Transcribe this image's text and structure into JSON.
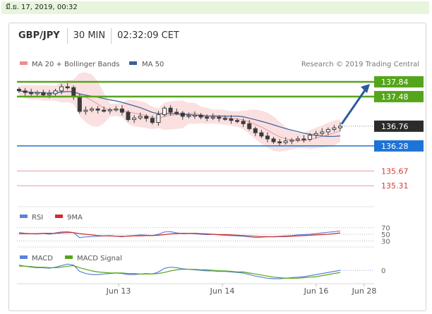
{
  "date_label": "มี.ย. 17, 2019, 00:32",
  "header": {
    "pair": "GBP/JPY",
    "timeframe": "30 MIN",
    "time": "02:32:09 CET"
  },
  "legend": {
    "ma20": "MA 20 + Bollinger Bands",
    "ma50": "MA 50",
    "credit": "Research © 2019 Trading Central"
  },
  "colors": {
    "candle": "#3b3b3b",
    "bollinger_fill": "#f5c6c6",
    "bollinger_line": "#e59a9a",
    "ma50": "#3c5f99",
    "green_level": "#55a51c",
    "current_price": "#2b2b2b",
    "pivot": "#1e73d6",
    "support": "#e89a9a",
    "arrow": "#2c5aa0",
    "rsi": "#5b82d8",
    "rsi_9ma": "#d82a2a",
    "macd": "#5b82d8",
    "macd_signal": "#55a51c"
  },
  "chart_data": {
    "type": "candlestick",
    "title": "GBP/JPY",
    "x_ticks": [
      "Jun 13",
      "Jun 14",
      "Jun 16",
      "Jun 28"
    ],
    "price_levels": [
      {
        "value": 137.84,
        "label": "137.84",
        "style": "target"
      },
      {
        "value": 137.48,
        "label": "137.48",
        "style": "target"
      },
      {
        "value": 136.76,
        "label": "136.76",
        "style": "current"
      },
      {
        "value": 136.28,
        "label": "136.28",
        "style": "pivot"
      },
      {
        "value": 135.67,
        "label": "135.67",
        "style": "support"
      },
      {
        "value": 135.31,
        "label": "135.31",
        "style": "support"
      }
    ],
    "projection": {
      "from": 136.76,
      "to": 137.84
    },
    "ylim": [
      134.85,
      138.08
    ],
    "close_series": [
      137.62,
      137.58,
      137.55,
      137.58,
      137.52,
      137.55,
      137.62,
      137.72,
      137.7,
      137.48,
      137.12,
      137.15,
      137.18,
      137.15,
      137.14,
      137.16,
      137.18,
      137.1,
      136.92,
      136.96,
      137.0,
      136.95,
      136.85,
      137.04,
      137.2,
      137.1,
      137.08,
      137.0,
      137.02,
      137.03,
      136.98,
      136.96,
      136.98,
      136.95,
      136.94,
      136.9,
      136.88,
      136.82,
      136.7,
      136.6,
      136.52,
      136.45,
      136.38,
      136.36,
      136.4,
      136.42,
      136.45,
      136.44,
      136.54,
      136.58,
      136.62,
      136.68,
      136.72,
      136.76
    ],
    "subcharts": [
      {
        "name": "RSI",
        "legend": [
          "RSI",
          "9MA"
        ],
        "levels": [
          "70",
          "50",
          "30"
        ],
        "rsi": [
          55,
          53,
          52,
          51,
          53,
          50,
          54,
          57,
          58,
          55,
          40,
          42,
          43,
          44,
          45,
          46,
          44,
          42,
          45,
          46,
          48,
          47,
          46,
          50,
          57,
          58,
          54,
          52,
          53,
          52,
          50,
          49,
          50,
          48,
          47,
          46,
          45,
          44,
          42,
          40,
          41,
          42,
          43,
          44,
          45,
          46,
          48,
          49,
          50,
          52,
          54,
          56,
          58,
          60
        ],
        "ma9": [
          52,
          52,
          52,
          52,
          53,
          53,
          53,
          54,
          55,
          55,
          52,
          50,
          48,
          46,
          45,
          45,
          44,
          44,
          44,
          45,
          45,
          46,
          46,
          47,
          49,
          51,
          52,
          53,
          53,
          53,
          52,
          51,
          50,
          49,
          49,
          48,
          47,
          46,
          45,
          44,
          43,
          43,
          42,
          43,
          43,
          44,
          45,
          46,
          47,
          48,
          49,
          50,
          52,
          54
        ]
      },
      {
        "name": "MACD",
        "legend": [
          "MACD",
          "MACD Signal"
        ],
        "levels": [
          "0"
        ],
        "macd": [
          0.1,
          0.08,
          0.06,
          0.05,
          0.05,
          0.04,
          0.06,
          0.09,
          0.12,
          0.1,
          -0.02,
          -0.06,
          -0.08,
          -0.08,
          -0.07,
          -0.06,
          -0.05,
          -0.06,
          -0.08,
          -0.08,
          -0.07,
          -0.06,
          -0.07,
          -0.03,
          0.04,
          0.06,
          0.05,
          0.03,
          0.02,
          0.01,
          0.0,
          -0.01,
          -0.01,
          -0.02,
          -0.02,
          -0.03,
          -0.04,
          -0.05,
          -0.08,
          -0.11,
          -0.13,
          -0.15,
          -0.16,
          -0.16,
          -0.15,
          -0.14,
          -0.13,
          -0.12,
          -0.1,
          -0.08,
          -0.06,
          -0.04,
          -0.02,
          0.0
        ],
        "signal": [
          0.08,
          0.08,
          0.07,
          0.06,
          0.06,
          0.05,
          0.05,
          0.06,
          0.08,
          0.09,
          0.05,
          0.02,
          -0.01,
          -0.03,
          -0.04,
          -0.05,
          -0.05,
          -0.05,
          -0.06,
          -0.06,
          -0.07,
          -0.07,
          -0.07,
          -0.06,
          -0.04,
          -0.01,
          0.01,
          0.02,
          0.02,
          0.02,
          0.01,
          0.01,
          0.0,
          -0.01,
          -0.01,
          -0.02,
          -0.03,
          -0.03,
          -0.05,
          -0.07,
          -0.09,
          -0.11,
          -0.13,
          -0.14,
          -0.15,
          -0.15,
          -0.15,
          -0.14,
          -0.13,
          -0.12,
          -0.1,
          -0.08,
          -0.06,
          -0.04
        ]
      }
    ]
  }
}
